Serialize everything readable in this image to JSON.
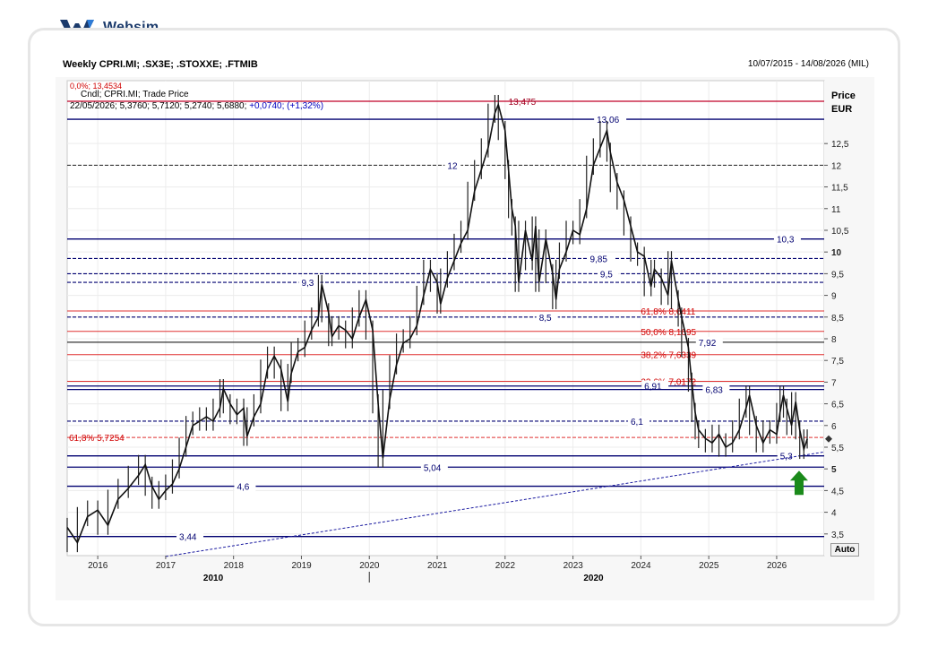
{
  "brand": {
    "name": "Websim",
    "accent": "#1b3a6b"
  },
  "header": {
    "title": "Weekly CPRI.MI; .SX3E; .STOXXE; .FTMIB",
    "range": "10/07/2015 - 14/08/2026 (MIL)"
  },
  "legend": {
    "line1": "Cndl; CPRI.MI; Trade Price",
    "line2_prefix": "22/05/2026; 5,3760; 5,7120; 5,2740; 5,6880; ",
    "line2_change": "+0,0740; (+1,32%)",
    "partial_label": "0,0%; 13,4534"
  },
  "axis": {
    "price_label": "Price",
    "currency_label": "EUR",
    "auto_label": "Auto"
  },
  "chart_data": {
    "type": "candlestick",
    "title": "Weekly CPRI.MI; .SX3E; .STOXXE; .FTMIB",
    "ylabel": "Price EUR",
    "ylim": [
      3.0,
      13.95
    ],
    "xlim": [
      2015.55,
      2026.7
    ],
    "y_ticks": [
      {
        "v": 3.5,
        "t": "3,5"
      },
      {
        "v": 4,
        "t": "4"
      },
      {
        "v": 4.5,
        "t": "4,5"
      },
      {
        "v": 5,
        "t": "5"
      },
      {
        "v": 5.5,
        "t": "5,5"
      },
      {
        "v": 6,
        "t": "6"
      },
      {
        "v": 6.5,
        "t": "6,5"
      },
      {
        "v": 7,
        "t": "7"
      },
      {
        "v": 7.5,
        "t": "7,5"
      },
      {
        "v": 8,
        "t": "8"
      },
      {
        "v": 8.5,
        "t": "8,5"
      },
      {
        "v": 9,
        "t": "9"
      },
      {
        "v": 9.5,
        "t": "9,5"
      },
      {
        "v": 10,
        "t": "10"
      },
      {
        "v": 10.5,
        "t": "10,5"
      },
      {
        "v": 11,
        "t": "11"
      },
      {
        "v": 11.5,
        "t": "11,5"
      },
      {
        "v": 12,
        "t": "12"
      },
      {
        "v": 12.5,
        "t": "12,5"
      }
    ],
    "x_ticks": [
      {
        "v": 2016,
        "t": "2016"
      },
      {
        "v": 2017,
        "t": "2017"
      },
      {
        "v": 2018,
        "t": "2018"
      },
      {
        "v": 2019,
        "t": "2019"
      },
      {
        "v": 2020,
        "t": "2020"
      },
      {
        "v": 2021,
        "t": "2021"
      },
      {
        "v": 2022,
        "t": "2022"
      },
      {
        "v": 2023,
        "t": "2023"
      },
      {
        "v": 2024,
        "t": "2024"
      },
      {
        "v": 2025,
        "t": "2025"
      },
      {
        "v": 2026,
        "t": "2026"
      }
    ],
    "decades": [
      {
        "v": 2017.7,
        "t": "2010"
      },
      {
        "v": 2023.3,
        "t": "2020"
      }
    ],
    "series": [
      {
        "name": "CPRI.MI",
        "points": [
          [
            2015.55,
            3.65
          ],
          [
            2015.7,
            3.3
          ],
          [
            2015.85,
            3.9
          ],
          [
            2016.0,
            4.05
          ],
          [
            2016.15,
            3.7
          ],
          [
            2016.3,
            4.3
          ],
          [
            2016.45,
            4.55
          ],
          [
            2016.6,
            4.85
          ],
          [
            2016.7,
            5.1
          ],
          [
            2016.8,
            4.6
          ],
          [
            2016.9,
            4.3
          ],
          [
            2017.0,
            4.5
          ],
          [
            2017.1,
            4.65
          ],
          [
            2017.2,
            5.0
          ],
          [
            2017.3,
            5.5
          ],
          [
            2017.4,
            6.0
          ],
          [
            2017.5,
            6.1
          ],
          [
            2017.6,
            6.2
          ],
          [
            2017.7,
            6.1
          ],
          [
            2017.8,
            6.4
          ],
          [
            2017.85,
            6.85
          ],
          [
            2017.95,
            6.5
          ],
          [
            2018.05,
            6.25
          ],
          [
            2018.15,
            6.4
          ],
          [
            2018.2,
            5.75
          ],
          [
            2018.3,
            6.2
          ],
          [
            2018.4,
            6.5
          ],
          [
            2018.5,
            7.3
          ],
          [
            2018.6,
            7.6
          ],
          [
            2018.7,
            7.3
          ],
          [
            2018.8,
            6.55
          ],
          [
            2018.85,
            7.2
          ],
          [
            2018.95,
            7.7
          ],
          [
            2019.05,
            7.8
          ],
          [
            2019.15,
            8.2
          ],
          [
            2019.25,
            8.5
          ],
          [
            2019.3,
            9.25
          ],
          [
            2019.4,
            8.6
          ],
          [
            2019.45,
            8.05
          ],
          [
            2019.55,
            8.3
          ],
          [
            2019.65,
            8.2
          ],
          [
            2019.75,
            8.0
          ],
          [
            2019.85,
            8.5
          ],
          [
            2019.95,
            8.9
          ],
          [
            2020.05,
            8.2
          ],
          [
            2020.13,
            6.5
          ],
          [
            2020.2,
            5.25
          ],
          [
            2020.3,
            6.6
          ],
          [
            2020.4,
            7.4
          ],
          [
            2020.5,
            7.9
          ],
          [
            2020.6,
            8.0
          ],
          [
            2020.7,
            8.3
          ],
          [
            2020.8,
            9.0
          ],
          [
            2020.9,
            9.6
          ],
          [
            2021.0,
            9.3
          ],
          [
            2021.05,
            8.8
          ],
          [
            2021.15,
            9.4
          ],
          [
            2021.25,
            9.8
          ],
          [
            2021.35,
            10.2
          ],
          [
            2021.45,
            10.5
          ],
          [
            2021.55,
            11.4
          ],
          [
            2021.65,
            11.9
          ],
          [
            2021.75,
            12.4
          ],
          [
            2021.85,
            13.2
          ],
          [
            2021.9,
            13.4
          ],
          [
            2022.0,
            12.8
          ],
          [
            2022.05,
            11.9
          ],
          [
            2022.1,
            11.0
          ],
          [
            2022.15,
            10.6
          ],
          [
            2022.2,
            9.3
          ],
          [
            2022.3,
            10.5
          ],
          [
            2022.4,
            9.8
          ],
          [
            2022.45,
            10.6
          ],
          [
            2022.5,
            9.3
          ],
          [
            2022.6,
            10.3
          ],
          [
            2022.7,
            9.5
          ],
          [
            2022.75,
            8.9
          ],
          [
            2022.8,
            9.6
          ],
          [
            2022.9,
            10.0
          ],
          [
            2023.0,
            10.5
          ],
          [
            2023.1,
            10.4
          ],
          [
            2023.2,
            11.0
          ],
          [
            2023.3,
            12.0
          ],
          [
            2023.4,
            12.4
          ],
          [
            2023.5,
            12.8
          ],
          [
            2023.55,
            12.3
          ],
          [
            2023.65,
            11.6
          ],
          [
            2023.75,
            11.2
          ],
          [
            2023.85,
            10.6
          ],
          [
            2023.95,
            10.0
          ],
          [
            2024.05,
            9.9
          ],
          [
            2024.15,
            9.2
          ],
          [
            2024.2,
            9.6
          ],
          [
            2024.3,
            9.4
          ],
          [
            2024.4,
            9.0
          ],
          [
            2024.45,
            9.8
          ],
          [
            2024.55,
            8.9
          ],
          [
            2024.6,
            8.5
          ],
          [
            2024.7,
            7.8
          ],
          [
            2024.75,
            7.0
          ],
          [
            2024.8,
            6.3
          ],
          [
            2024.85,
            5.9
          ],
          [
            2024.95,
            5.7
          ],
          [
            2025.05,
            5.6
          ],
          [
            2025.15,
            5.8
          ],
          [
            2025.25,
            5.5
          ],
          [
            2025.35,
            5.6
          ],
          [
            2025.45,
            5.9
          ],
          [
            2025.55,
            6.4
          ],
          [
            2025.6,
            6.7
          ],
          [
            2025.7,
            6.0
          ],
          [
            2025.8,
            5.6
          ],
          [
            2025.9,
            5.9
          ],
          [
            2026.0,
            5.8
          ],
          [
            2026.05,
            6.3
          ],
          [
            2026.1,
            6.7
          ],
          [
            2026.15,
            6.4
          ],
          [
            2026.22,
            6.0
          ],
          [
            2026.28,
            6.55
          ],
          [
            2026.34,
            5.9
          ],
          [
            2026.4,
            5.45
          ],
          [
            2026.45,
            5.69
          ]
        ]
      }
    ],
    "support_lines": [
      {
        "y": 13.475,
        "label": "13,475",
        "style": "solid",
        "color": "#c00028"
      },
      {
        "y": 13.06,
        "label": "13,06",
        "style": "solid",
        "color": "#000070"
      },
      {
        "y": 12,
        "label": "12",
        "style": "dash",
        "color": "#222222"
      },
      {
        "y": 10.3,
        "label": "10,3",
        "style": "solid",
        "color": "#000070"
      },
      {
        "y": 9.85,
        "label": "9,85",
        "style": "dash",
        "color": "#000070"
      },
      {
        "y": 9.5,
        "label": "9,5",
        "style": "dash",
        "color": "#000070"
      },
      {
        "y": 9.3,
        "label": "9,3",
        "style": "dash",
        "color": "#000070"
      },
      {
        "y": 8.5,
        "label": "8,5",
        "style": "dash",
        "color": "#000070"
      },
      {
        "y": 7.92,
        "label": "7,92",
        "style": "solid",
        "color": "#333333"
      },
      {
        "y": 6.91,
        "label": "6,91",
        "style": "solid",
        "color": "#000070"
      },
      {
        "y": 6.83,
        "label": "6,83",
        "style": "solid",
        "color": "#000070"
      },
      {
        "y": 6.1,
        "label": "6,1",
        "style": "dash",
        "color": "#000070"
      },
      {
        "y": 5.3,
        "label": "5,3",
        "style": "solid",
        "color": "#000070"
      },
      {
        "y": 5.04,
        "label": "5,04",
        "style": "solid",
        "color": "#000070"
      },
      {
        "y": 4.6,
        "label": "4,6",
        "style": "solid",
        "color": "#000070"
      },
      {
        "y": 3.44,
        "label": "3,44",
        "style": "solid",
        "color": "#000070"
      }
    ],
    "fib_lines": [
      {
        "y": 8.6411,
        "label": "61,8% 8,6411"
      },
      {
        "y": 8.1695,
        "label": "50,0% 8,1695"
      },
      {
        "y": 7.6339,
        "label": "38,2% 7,6339"
      },
      {
        "y": 7.0172,
        "label": "23,6% 7,0172"
      },
      {
        "y": 5.7254,
        "label": "61,8% 5,7254"
      }
    ],
    "trendline": {
      "from": [
        2017.0,
        2.98
      ],
      "to": [
        2026.7,
        5.39
      ]
    },
    "last_price": 5.69,
    "signal": {
      "type": "up-arrow",
      "x": 2026.33,
      "color": "#1a8a1a"
    },
    "grid": true
  }
}
